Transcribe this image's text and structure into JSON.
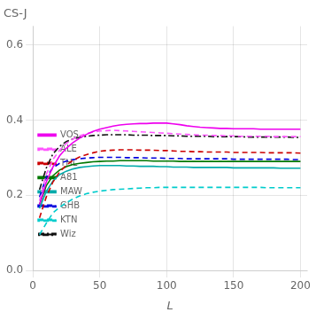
{
  "chart_data": {
    "type": "line",
    "title": "CS-J",
    "xlabel": "L",
    "xlim": [
      0,
      205
    ],
    "ylim": [
      0,
      0.65
    ],
    "xticks": [
      0,
      50,
      100,
      150,
      200
    ],
    "yticks": [
      {
        "value": 0,
        "label": "0.0"
      },
      0.2,
      0.4,
      0.6
    ],
    "grid": true,
    "legend": "upper right",
    "x": [
      5,
      10,
      15,
      20,
      25,
      30,
      35,
      40,
      45,
      50,
      55,
      60,
      65,
      70,
      75,
      80,
      85,
      90,
      95,
      100,
      105,
      110,
      115,
      120,
      125,
      130,
      135,
      140,
      145,
      150,
      155,
      160,
      165,
      170,
      175,
      180,
      185,
      190,
      195,
      200
    ],
    "series": [
      {
        "name": "VOS",
        "color": "#ee00ee",
        "line_style": "solid",
        "values": [
          0.175,
          0.235,
          0.275,
          0.305,
          0.325,
          0.34,
          0.352,
          0.362,
          0.37,
          0.376,
          0.38,
          0.384,
          0.387,
          0.389,
          0.39,
          0.391,
          0.391,
          0.392,
          0.392,
          0.392,
          0.39,
          0.388,
          0.385,
          0.383,
          0.381,
          0.38,
          0.379,
          0.378,
          0.378,
          0.377,
          0.377,
          0.377,
          0.377,
          0.376,
          0.376,
          0.376,
          0.376,
          0.376,
          0.376,
          0.376
        ]
      },
      {
        "name": "ALE",
        "color": "#ff55ff",
        "line_style": "dashed",
        "values": [
          0.185,
          0.255,
          0.295,
          0.32,
          0.338,
          0.35,
          0.358,
          0.364,
          0.368,
          0.371,
          0.372,
          0.373,
          0.372,
          0.371,
          0.37,
          0.369,
          0.368,
          0.367,
          0.366,
          0.365,
          0.364,
          0.363,
          0.362,
          0.361,
          0.36,
          0.36,
          0.359,
          0.359,
          0.358,
          0.358,
          0.357,
          0.357,
          0.357,
          0.357,
          0.357,
          0.356,
          0.356,
          0.356,
          0.356,
          0.356
        ]
      },
      {
        "name": "THL",
        "color": "#cc0000",
        "line_style": "dashed",
        "values": [
          0.14,
          0.195,
          0.235,
          0.262,
          0.28,
          0.293,
          0.302,
          0.308,
          0.313,
          0.317,
          0.319,
          0.32,
          0.321,
          0.321,
          0.321,
          0.32,
          0.32,
          0.32,
          0.319,
          0.319,
          0.318,
          0.317,
          0.317,
          0.316,
          0.316,
          0.315,
          0.315,
          0.315,
          0.315,
          0.314,
          0.314,
          0.314,
          0.314,
          0.314,
          0.313,
          0.313,
          0.313,
          0.313,
          0.313,
          0.312
        ]
      },
      {
        "name": "A81",
        "color": "#007700",
        "line_style": "solid",
        "values": [
          0.175,
          0.225,
          0.252,
          0.267,
          0.276,
          0.282,
          0.285,
          0.287,
          0.289,
          0.29,
          0.291,
          0.291,
          0.292,
          0.292,
          0.292,
          0.292,
          0.292,
          0.291,
          0.291,
          0.291,
          0.291,
          0.29,
          0.29,
          0.29,
          0.29,
          0.29,
          0.29,
          0.29,
          0.29,
          0.29,
          0.29,
          0.29,
          0.29,
          0.29,
          0.29,
          0.29,
          0.29,
          0.29,
          0.29,
          0.29
        ]
      },
      {
        "name": "MAW",
        "color": "#00aaaa",
        "line_style": "solid",
        "values": [
          0.165,
          0.21,
          0.238,
          0.255,
          0.264,
          0.27,
          0.274,
          0.276,
          0.278,
          0.279,
          0.279,
          0.279,
          0.279,
          0.278,
          0.278,
          0.277,
          0.277,
          0.277,
          0.276,
          0.276,
          0.275,
          0.275,
          0.275,
          0.274,
          0.274,
          0.274,
          0.274,
          0.274,
          0.274,
          0.273,
          0.273,
          0.273,
          0.273,
          0.273,
          0.273,
          0.273,
          0.272,
          0.272,
          0.272,
          0.272
        ]
      },
      {
        "name": "GHB",
        "color": "#0000dd",
        "line_style": "dashed",
        "values": [
          0.195,
          0.248,
          0.273,
          0.285,
          0.291,
          0.295,
          0.297,
          0.299,
          0.3,
          0.301,
          0.301,
          0.301,
          0.301,
          0.3,
          0.3,
          0.3,
          0.299,
          0.299,
          0.299,
          0.298,
          0.298,
          0.298,
          0.297,
          0.297,
          0.297,
          0.297,
          0.297,
          0.297,
          0.297,
          0.296,
          0.296,
          0.296,
          0.296,
          0.296,
          0.296,
          0.296,
          0.296,
          0.296,
          0.295,
          0.295
        ]
      },
      {
        "name": "KTN",
        "color": "#00cccc",
        "line_style": "dashed",
        "values": [
          0.095,
          0.125,
          0.153,
          0.168,
          0.18,
          0.19,
          0.198,
          0.204,
          0.208,
          0.211,
          0.213,
          0.215,
          0.216,
          0.217,
          0.218,
          0.219,
          0.22,
          0.22,
          0.221,
          0.221,
          0.221,
          0.221,
          0.221,
          0.221,
          0.221,
          0.221,
          0.221,
          0.221,
          0.221,
          0.221,
          0.221,
          0.221,
          0.221,
          0.221,
          0.22,
          0.22,
          0.22,
          0.22,
          0.22,
          0.22
        ]
      },
      {
        "name": "Wiz",
        "color": "#111111",
        "line_style": "dashdot",
        "values": [
          0.215,
          0.272,
          0.31,
          0.33,
          0.343,
          0.35,
          0.354,
          0.357,
          0.359,
          0.36,
          0.361,
          0.361,
          0.361,
          0.361,
          0.36,
          0.36,
          0.36,
          0.359,
          0.359,
          0.359,
          0.358,
          0.358,
          0.357,
          0.357,
          0.357,
          0.357,
          0.356,
          0.356,
          0.356,
          0.356,
          0.356,
          0.355,
          0.355,
          0.355,
          0.355,
          0.355,
          0.355,
          0.355,
          0.354,
          0.354
        ]
      }
    ]
  }
}
